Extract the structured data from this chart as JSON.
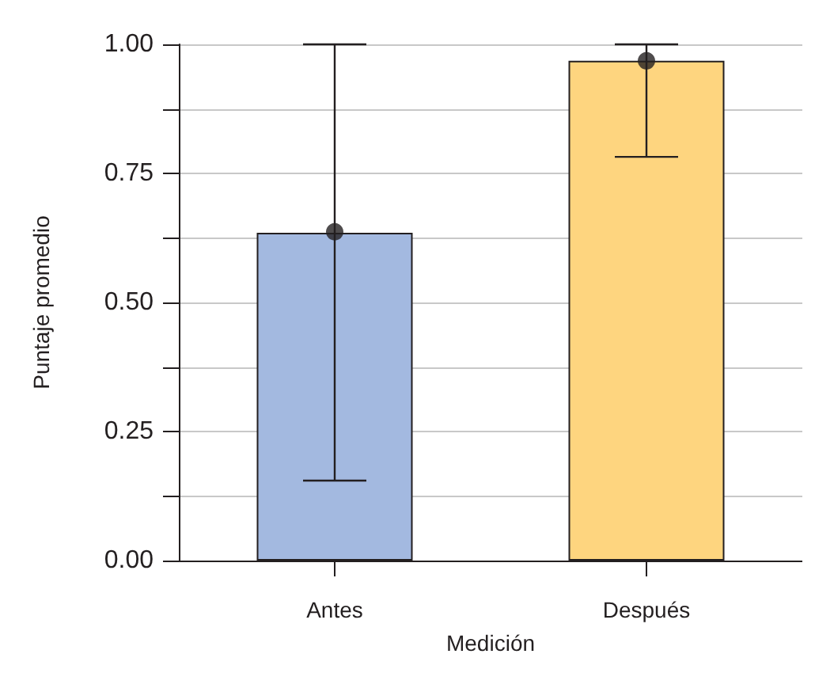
{
  "chart_data": {
    "type": "bar",
    "xlabel": "Medición",
    "ylabel": "Puntaje promedio",
    "categories": [
      "Antes",
      "Después"
    ],
    "series": [
      {
        "colors": [
          "#a3b9e0",
          "#fed57f"
        ],
        "values": [
          0.635,
          0.968
        ],
        "errors": [
          [
            0.155,
            1.0
          ],
          [
            0.782,
            1.0
          ]
        ]
      },
      {
        "type": "scatter",
        "color": "#231f20",
        "x": [
          "Antes",
          "Después"
        ],
        "values": [
          0.637,
          0.968
        ],
        "marker": "circle"
      }
    ],
    "ylim": [
      0,
      1
    ],
    "yticks": [
      {
        "value": 0,
        "label": "0.00"
      },
      {
        "value": 0.125,
        "label": null
      },
      {
        "value": 0.25,
        "label": "0.25"
      },
      {
        "value": 0.375,
        "label": null
      },
      {
        "value": 0.5,
        "label": "0.50"
      },
      {
        "value": 0.625,
        "label": null
      },
      {
        "value": 0.75,
        "label": "0.75"
      },
      {
        "value": 0.875,
        "label": null
      },
      {
        "value": 1,
        "label": "1.00"
      }
    ],
    "grid": "y"
  }
}
